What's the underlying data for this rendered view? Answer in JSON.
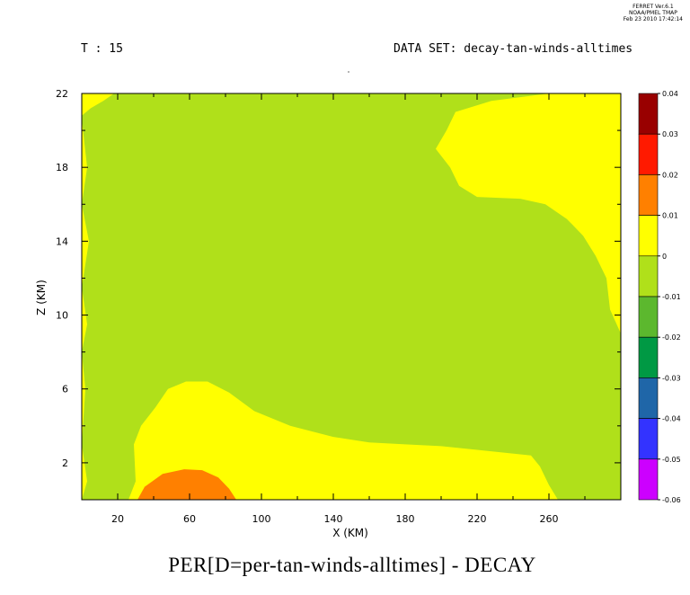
{
  "header": {
    "time_label": "T : 15",
    "dataset_label": "DATA SET: decay-tan-winds-alltimes",
    "stamp": [
      "FERRET Ver.6.1",
      "NOAA/PMEL TMAP",
      "Feb 23 2010 17:42:14"
    ]
  },
  "chart_data": {
    "type": "heatmap",
    "title": "PER[D=per-tan-winds-alltimes] - DECAY",
    "xlabel": "X (KM)",
    "ylabel": "Z (KM)",
    "xlim": [
      0,
      300
    ],
    "ylim": [
      0,
      22
    ],
    "x_ticks": [
      20,
      60,
      100,
      140,
      180,
      220,
      260
    ],
    "y_ticks": [
      2,
      6,
      10,
      14,
      18,
      22
    ],
    "colorbar": {
      "levels": [
        0.04,
        0.03,
        0.02,
        0.01,
        0,
        -0.01,
        -0.02,
        -0.03,
        -0.04,
        -0.05,
        -0.06
      ],
      "colors": [
        "#990000",
        "#ff1a00",
        "#ff8000",
        "#ffff00",
        "#b0e01a",
        "#5cb82e",
        "#009944",
        "#1f66a8",
        "#3333ff",
        "#cc00ff"
      ]
    },
    "regions": [
      {
        "range": [
          -0.01,
          0
        ],
        "color": "#b0e01a",
        "description": "background"
      },
      {
        "range": [
          0,
          0.01
        ],
        "color": "#ffff00",
        "points": [
          [
            26,
            0
          ],
          [
            30,
            1
          ],
          [
            29,
            3
          ],
          [
            33,
            4
          ],
          [
            41,
            5
          ],
          [
            48,
            6
          ],
          [
            58,
            6.4
          ],
          [
            70,
            6.4
          ],
          [
            82,
            5.8
          ],
          [
            96,
            4.8
          ],
          [
            116,
            4.0
          ],
          [
            140,
            3.4
          ],
          [
            160,
            3.1
          ],
          [
            180,
            3.0
          ],
          [
            200,
            2.9
          ],
          [
            220,
            2.7
          ],
          [
            250,
            2.4
          ],
          [
            255,
            1.8
          ],
          [
            260,
            0.8
          ],
          [
            265,
            0
          ]
        ]
      },
      {
        "range": [
          0.01,
          0.02
        ],
        "color": "#ff8000",
        "points": [
          [
            31,
            0
          ],
          [
            35,
            0.7
          ],
          [
            45,
            1.4
          ],
          [
            57,
            1.65
          ],
          [
            67,
            1.6
          ],
          [
            76,
            1.2
          ],
          [
            82,
            0.6
          ],
          [
            86,
            0
          ]
        ]
      },
      {
        "range": [
          0,
          0.01
        ],
        "color": "#ffff00",
        "points": [
          [
            300,
            22
          ],
          [
            300,
            9
          ],
          [
            294,
            10.3
          ],
          [
            292,
            12
          ],
          [
            286,
            13.2
          ],
          [
            279,
            14.3
          ],
          [
            270,
            15.2
          ],
          [
            258,
            16
          ],
          [
            244,
            16.3
          ],
          [
            220,
            16.4
          ],
          [
            210,
            17
          ],
          [
            205,
            18
          ],
          [
            197,
            19
          ],
          [
            203,
            20
          ],
          [
            208,
            21
          ],
          [
            228,
            21.6
          ],
          [
            260,
            22
          ]
        ]
      },
      {
        "range": [
          0,
          0.01
        ],
        "color": "#ffff00",
        "points": [
          [
            0,
            22
          ],
          [
            0,
            20.8
          ],
          [
            5,
            21.2
          ],
          [
            12,
            21.6
          ],
          [
            18,
            22
          ]
        ]
      },
      {
        "range": [
          0,
          0.01
        ],
        "color": "#ffff00",
        "points": [
          [
            0,
            20.6
          ],
          [
            3,
            18
          ],
          [
            0,
            16
          ],
          [
            4,
            14
          ],
          [
            0,
            11.5
          ],
          [
            3,
            9.5
          ],
          [
            0,
            8
          ],
          [
            2,
            6
          ],
          [
            0,
            3
          ],
          [
            3,
            1
          ],
          [
            0,
            0
          ]
        ]
      }
    ]
  },
  "colors": {
    "background": "#ffffff",
    "axis": "#000000"
  }
}
